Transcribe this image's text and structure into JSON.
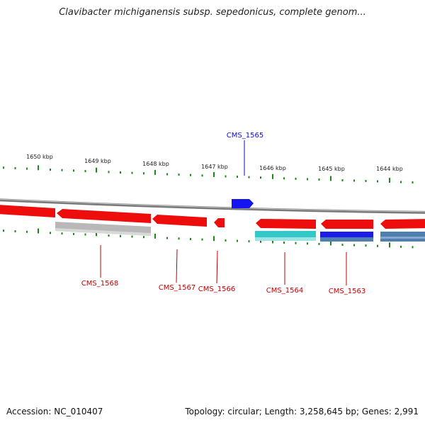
{
  "title": "Clavibacter michiganensis subsp. sepedonicus, complete genom...",
  "footer": {
    "accession": "Accession: NC_010407",
    "stats": "Topology: circular; Length: 3,258,645 bp; Genes: 2,991"
  },
  "colors": {
    "forward_gene": "#1414f0",
    "reverse_gene": "#ee0d0d",
    "label_forward": "#0b0bd0",
    "label_reverse": "#c00000",
    "tick": "#1a8a1a",
    "backbone": "#8a8a8a",
    "cds_gray": "#b8b8b8",
    "cds_cyan": "#35c8c8",
    "cds_blue": "#1c1ce6",
    "cds_steel": "#4f7fae"
  },
  "scale_labels": [
    "1650 kbp",
    "1649 kbp",
    "1648 kbp",
    "1647 kbp",
    "1646 kbp",
    "1645 kbp",
    "1644 kbp"
  ],
  "genes_top": [
    {
      "name": "CMS_1565",
      "strand": "forward"
    }
  ],
  "genes_bottom": [
    {
      "name": "CMS_1568",
      "strand": "reverse"
    },
    {
      "name": "CMS_1567",
      "strand": "reverse"
    },
    {
      "name": "CMS_1566",
      "strand": "reverse"
    },
    {
      "name": "CMS_1564",
      "strand": "reverse"
    },
    {
      "name": "CMS_1563",
      "strand": "reverse"
    }
  ]
}
